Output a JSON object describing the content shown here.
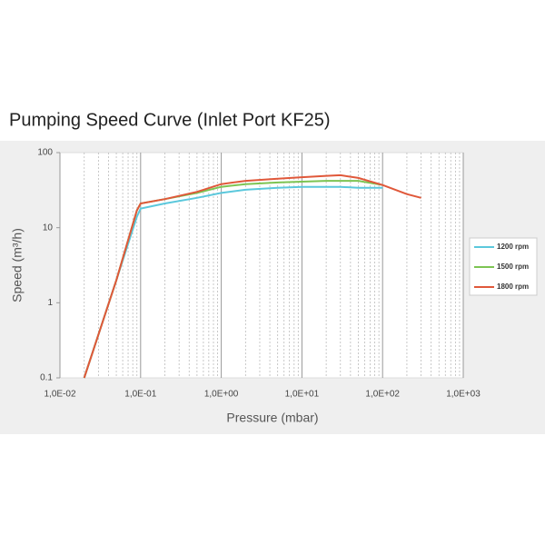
{
  "chart_data": {
    "type": "line",
    "title": "Pumping Speed Curve (Inlet Port KF25)",
    "x_label": "Pressure (mbar)",
    "y_label": "Speed (m³/h)",
    "x_log": true,
    "y_log": true,
    "grid": true,
    "legend": "right",
    "xlim": [
      0.01,
      1000
    ],
    "ylim": [
      0.1,
      100
    ],
    "xticks": [
      {
        "value": 0.01,
        "label": "1,0E-02"
      },
      {
        "value": 0.1,
        "label": "1,0E-01"
      },
      {
        "value": 1,
        "label": "1,0E+00"
      },
      {
        "value": 10,
        "label": "1,0E+01"
      },
      {
        "value": 100,
        "label": "1,0E+02"
      },
      {
        "value": 1000,
        "label": "1,0E+03"
      }
    ],
    "yticks": [
      0.1,
      1,
      10,
      100
    ],
    "x": [
      0.02,
      0.05,
      0.09,
      0.1,
      0.2,
      0.5,
      1,
      2,
      5,
      10,
      20,
      30,
      50,
      100,
      200,
      300
    ],
    "series": [
      {
        "name": "1200 rpm",
        "color": "#5bc8dc",
        "values": [
          0.1,
          2,
          14,
          18,
          21,
          25,
          29,
          32,
          34,
          35,
          35,
          35,
          34,
          34,
          null,
          null
        ]
      },
      {
        "name": "1500 rpm",
        "color": "#7dc453",
        "values": [
          0.1,
          2,
          17,
          21,
          24,
          29,
          35,
          38,
          40,
          41,
          42,
          42,
          42,
          37,
          null,
          null
        ]
      },
      {
        "name": "1800 rpm",
        "color": "#e0583a",
        "values": [
          0.1,
          2,
          17,
          21,
          24,
          30,
          38,
          42,
          45,
          47,
          49,
          50,
          46,
          37,
          28,
          25
        ]
      }
    ]
  }
}
